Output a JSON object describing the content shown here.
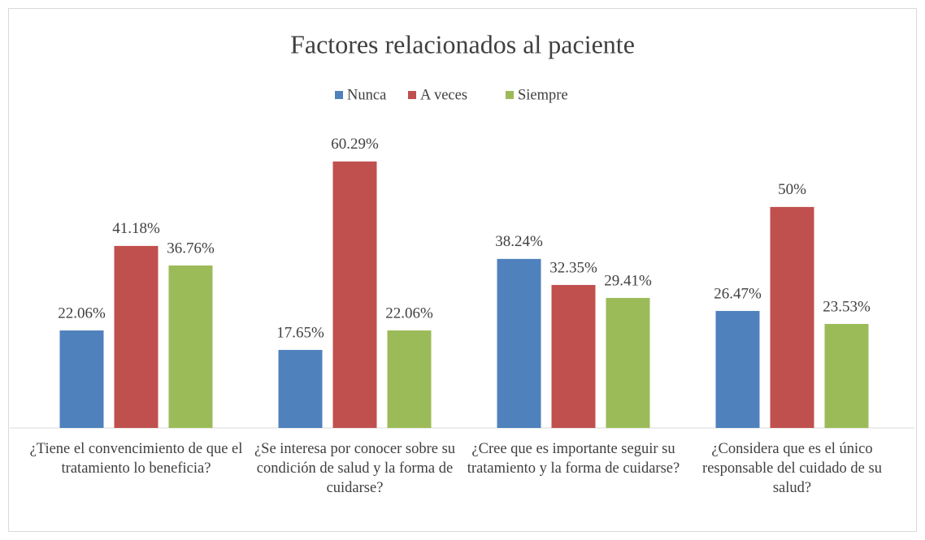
{
  "chart_data": {
    "type": "bar",
    "title": "Factores relacionados al paciente",
    "categories": [
      "¿Tiene el convencimiento de que el tratamiento lo beneficia?",
      "¿Se interesa por conocer sobre su condición de salud y la forma de cuidarse?",
      "¿Cree que es importante seguir su tratamiento y la forma de cuidarse?",
      "¿Considera que es el único responsable del cuidado de su salud?"
    ],
    "series": [
      {
        "name": "Nunca",
        "color": "#4f81bd",
        "values": [
          22.06,
          17.65,
          38.24,
          26.47
        ],
        "value_labels": [
          "22.06%",
          "17.65%",
          "38.24%",
          "26.47%"
        ]
      },
      {
        "name": "A veces",
        "color": "#c0504d",
        "values": [
          41.18,
          60.29,
          32.35,
          50
        ],
        "value_labels": [
          "41.18%",
          "60.29%",
          "32.35%",
          "50%"
        ]
      },
      {
        "name": "Siempre",
        "color": "#9bbb59",
        "values": [
          36.76,
          22.06,
          29.41,
          23.53
        ],
        "value_labels": [
          "36.76%",
          "22.06%",
          "29.41%",
          "23.53%"
        ]
      }
    ],
    "ylim": [
      0,
      70
    ],
    "legend": "top"
  }
}
